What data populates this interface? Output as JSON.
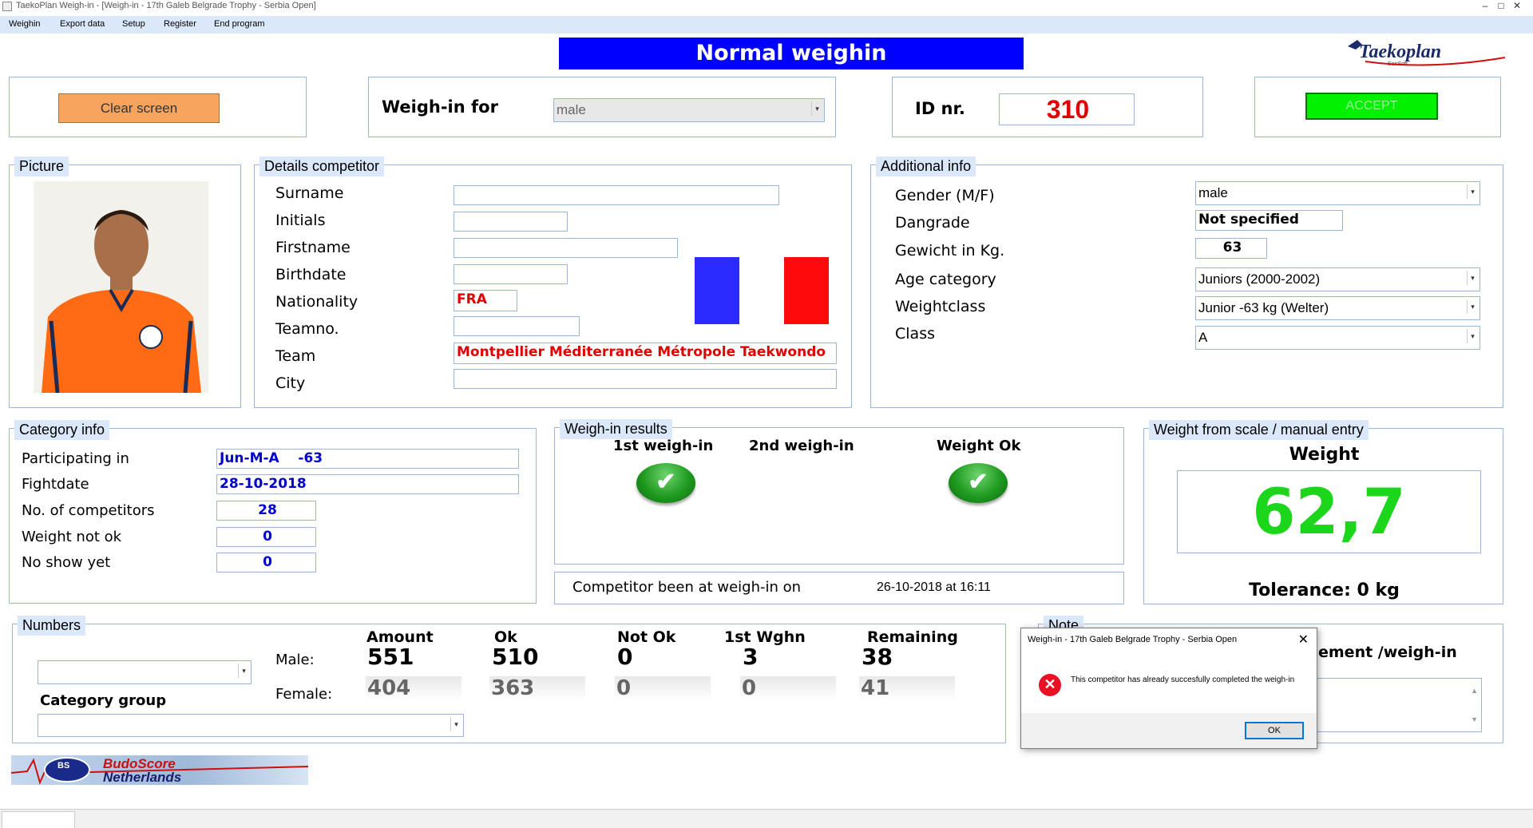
{
  "window": {
    "title": "TaekoPlan Weigh-in - [Weigh-in - 17th Galeb Belgrade Trophy -  Serbia Open]",
    "minimize": "–",
    "maximize": "□",
    "close": "✕"
  },
  "menu": [
    "Weighin",
    "Export data",
    "Setup",
    "Register",
    "End program"
  ],
  "heading": "Normal weighin",
  "logo": {
    "main": "Taekoplan",
    "sub": "SenSoft"
  },
  "top": {
    "clear_button": "Clear screen",
    "weighin_for_label": "Weigh-in for",
    "weighin_for_value": "male",
    "id_label": "ID nr.",
    "id_value": "310",
    "accept_button": "ACCEPT"
  },
  "picture": {
    "legend": "Picture"
  },
  "details": {
    "legend": "Details competitor",
    "labels": [
      "Surname",
      "Initials",
      "Firstname",
      "Birthdate",
      "Nationality",
      "Teamno.",
      "Team",
      "City"
    ],
    "nationality": "FRA",
    "team": "Montpellier Méditerranée Métropole Taekwondo"
  },
  "flag_colors": {
    "blue": "#2b2bff",
    "white": "#ffffff",
    "red": "#ff0a0a"
  },
  "additional": {
    "legend": "Additional info",
    "labels": [
      "Gender (M/F)",
      "Dangrade",
      "Gewicht in Kg.",
      "Age category",
      "Weightclass",
      "Class"
    ],
    "gender": "male",
    "dangrade": "Not specified",
    "weight": "63",
    "age_category": "Juniors (2000-2002)",
    "weightclass": "Junior -63 kg (Welter)",
    "class": "A"
  },
  "category": {
    "legend": "Category info",
    "labels": [
      "Participating in",
      "Fightdate",
      "No. of competitors",
      "Weight not ok",
      "No show yet"
    ],
    "participating": "Jun-M-A    -63",
    "fightdate": "28-10-2018",
    "competitors": "28",
    "weight_not_ok": "0",
    "no_show": "0"
  },
  "weighin_results": {
    "legend": "Weigh-in results",
    "first": "1st weigh-in",
    "second": "2nd weigh-in",
    "ok": "Weight Ok",
    "check_glyph": "✔",
    "been_label": "Competitor been at weigh-in on",
    "been_value": "26-10-2018 at 16:11"
  },
  "scale": {
    "legend": "Weight from scale / manual entry",
    "weight_label": "Weight",
    "weight_value": "62,7",
    "tolerance": "Tolerance: 0 kg"
  },
  "numbers": {
    "legend": "Numbers",
    "category_group": "Category group",
    "male_label": "Male:",
    "female_label": "Female:",
    "headers": [
      "Amount",
      "Ok",
      "Not Ok",
      "1st Wghn",
      "Remaining"
    ],
    "male": [
      "551",
      "510",
      "0",
      "3",
      "38"
    ],
    "female": [
      "404",
      "363",
      "0",
      "0",
      "41"
    ]
  },
  "note": {
    "legend": "Note",
    "text": "ement /weigh-in"
  },
  "dialog": {
    "title": "Weigh-in - 17th Galeb Belgrade Trophy -  Serbia Open",
    "close": "✕",
    "icon": "✕",
    "message": "This competitor has already succesfully completed the weigh-in",
    "ok": "OK"
  },
  "budoscore": {
    "initials": "BS",
    "line1": "BudoScore",
    "line2": "Netherlands"
  }
}
